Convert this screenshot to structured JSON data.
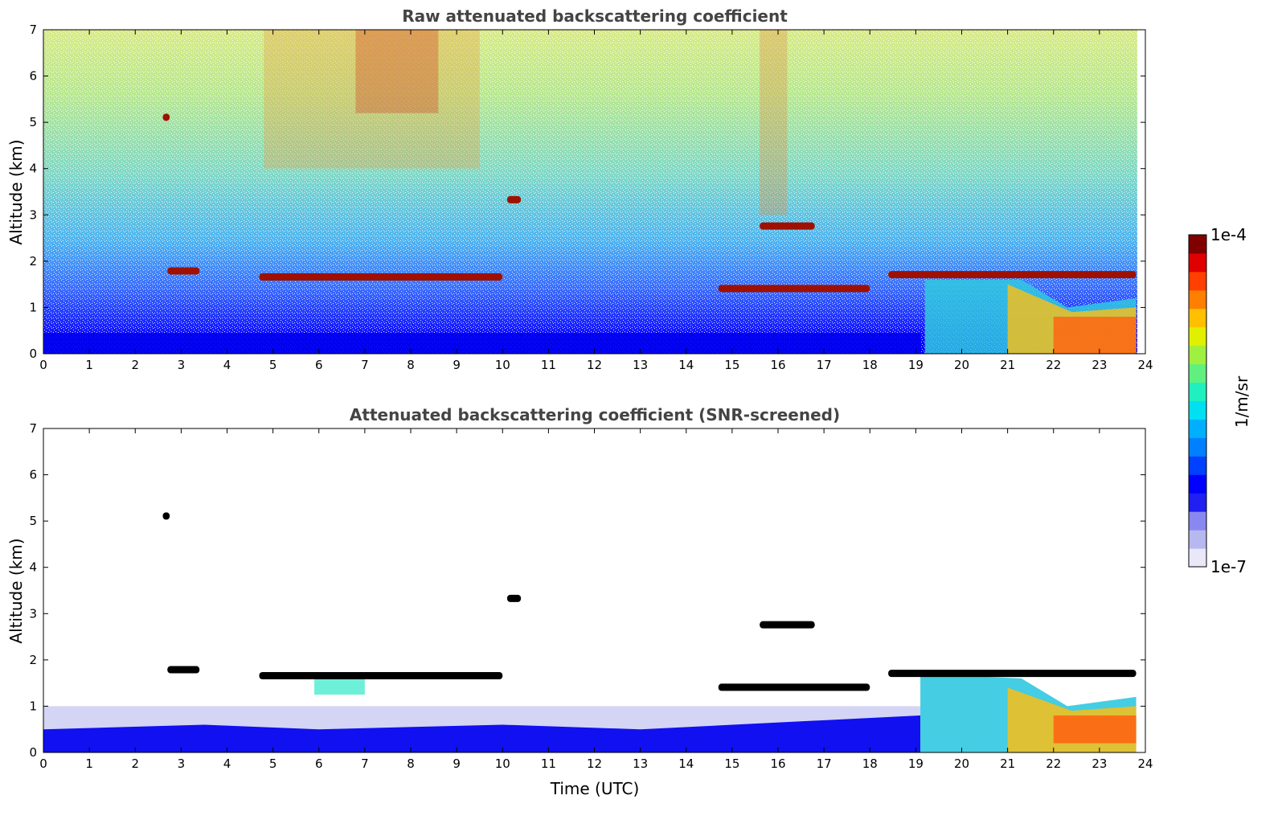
{
  "chart_data": [
    {
      "type": "heatmap",
      "title": "Raw attenuated backscattering coefficient",
      "xlabel": "",
      "ylabel": "Altitude (km)",
      "xlim": [
        0,
        24
      ],
      "ylim": [
        0,
        7
      ],
      "xticks": [
        "0",
        "1",
        "2",
        "3",
        "4",
        "5",
        "6",
        "7",
        "8",
        "9",
        "10",
        "11",
        "12",
        "13",
        "14",
        "15",
        "16",
        "17",
        "18",
        "19",
        "20",
        "21",
        "22",
        "23",
        "24"
      ],
      "yticks": [
        "0",
        "1",
        "2",
        "3",
        "4",
        "5",
        "6",
        "7"
      ],
      "layers": [
        {
          "t_start": 4.7,
          "t_end": 10.0,
          "alt_km": 1.65,
          "level": "high"
        },
        {
          "t_start": 2.7,
          "t_end": 3.4,
          "alt_km": 1.78,
          "level": "high"
        },
        {
          "t_start": 2.6,
          "t_end": 2.75,
          "alt_km": 5.1,
          "level": "high"
        },
        {
          "t_start": 10.1,
          "t_end": 10.4,
          "alt_km": 3.32,
          "level": "high"
        },
        {
          "t_start": 14.7,
          "t_end": 18.0,
          "alt_km": 1.4,
          "level": "high"
        },
        {
          "t_start": 15.6,
          "t_end": 16.8,
          "alt_km": 2.75,
          "level": "high"
        },
        {
          "t_start": 18.4,
          "t_end": 23.8,
          "alt_km": 1.7,
          "level": "high"
        }
      ]
    },
    {
      "type": "heatmap",
      "title": "Attenuated backscattering coefficient (SNR-screened)",
      "xlabel": "Time (UTC)",
      "ylabel": "Altitude (km)",
      "xlim": [
        0,
        24
      ],
      "ylim": [
        0,
        7
      ],
      "xticks": [
        "0",
        "1",
        "2",
        "3",
        "4",
        "5",
        "6",
        "7",
        "8",
        "9",
        "10",
        "11",
        "12",
        "13",
        "14",
        "15",
        "16",
        "17",
        "18",
        "19",
        "20",
        "21",
        "22",
        "23",
        "24"
      ],
      "yticks": [
        "0",
        "1",
        "2",
        "3",
        "4",
        "5",
        "6",
        "7"
      ]
    }
  ],
  "colorbar": {
    "label": "1/m/sr",
    "max_label": "1e-4",
    "min_label": "1e-7",
    "colors": [
      "#e8e8f8",
      "#b8b8f0",
      "#8888f0",
      "#2020f0",
      "#0000ff",
      "#0040ff",
      "#0080ff",
      "#00b0ff",
      "#00e0f0",
      "#20f0c0",
      "#60f080",
      "#a0f040",
      "#e0f000",
      "#ffc000",
      "#ff8000",
      "#ff4000",
      "#e00000",
      "#800000"
    ]
  }
}
